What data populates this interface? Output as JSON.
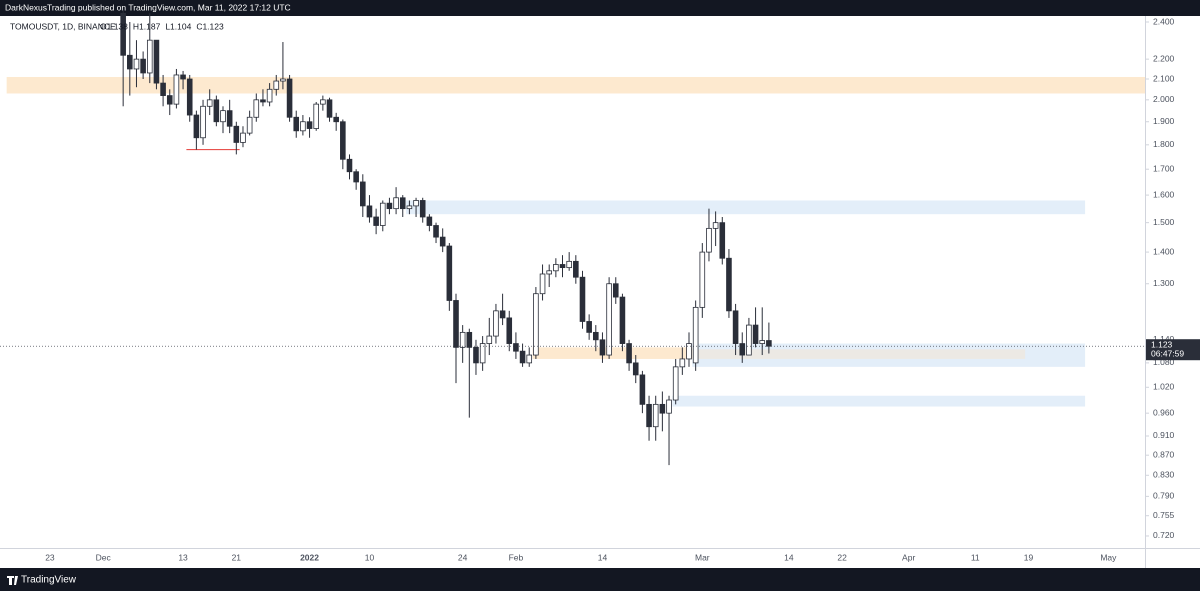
{
  "header": "DarkNexusTrading published on TradingView.com, Mar 11, 2022 17:12 UTC",
  "footer": "TradingView",
  "chart_data": {
    "type": "candlestick",
    "symbol": "TOMOUSDT, 1D, BINANCE",
    "ohlc_text": [
      "O1.138",
      "H1.187",
      "L1.104",
      "C1.123"
    ],
    "last_price": 1.123,
    "countdown": "06:47:59",
    "log_scale": true,
    "grid": false,
    "up_color": "#ffffff",
    "down_color": "#2a2e39",
    "ylim": [
      0.7,
      2.434
    ],
    "yticks": [
      {
        "value": 2.4,
        "label": "2.400"
      },
      {
        "value": 2.2,
        "label": "2.200"
      },
      {
        "value": 2.1,
        "label": "2.100"
      },
      {
        "value": 2.0,
        "label": "2.000"
      },
      {
        "value": 1.9,
        "label": "1.900"
      },
      {
        "value": 1.8,
        "label": "1.800"
      },
      {
        "value": 1.7,
        "label": "1.700"
      },
      {
        "value": 1.6,
        "label": "1.600"
      },
      {
        "value": 1.5,
        "label": "1.500"
      },
      {
        "value": 1.4,
        "label": "1.400"
      },
      {
        "value": 1.3,
        "label": "1.300"
      },
      {
        "value": 1.14,
        "label": "1.140"
      },
      {
        "value": 1.08,
        "label": "1.080"
      },
      {
        "value": 1.02,
        "label": "1.020"
      },
      {
        "value": 0.96,
        "label": "0.960"
      },
      {
        "value": 0.91,
        "label": "0.910"
      },
      {
        "value": 0.87,
        "label": "0.870"
      },
      {
        "value": 0.83,
        "label": "0.830"
      },
      {
        "value": 0.79,
        "label": "0.790"
      },
      {
        "value": 0.755,
        "label": "0.755"
      },
      {
        "value": 0.72,
        "label": "0.720"
      }
    ],
    "categories": [
      null,
      null,
      null,
      null,
      null,
      null,
      null,
      "23",
      null,
      null,
      null,
      null,
      null,
      null,
      null,
      "Dec",
      null,
      null,
      null,
      null,
      null,
      null,
      null,
      null,
      null,
      null,
      null,
      "13",
      null,
      null,
      null,
      null,
      null,
      null,
      null,
      "21",
      null,
      null,
      null,
      null,
      null,
      null,
      null,
      null,
      null,
      null,
      "2022",
      null,
      null,
      null,
      null,
      null,
      null,
      null,
      null,
      "10",
      null,
      null,
      null,
      null,
      null,
      null,
      null,
      null,
      null,
      null,
      null,
      null,
      null,
      "24",
      null,
      null,
      null,
      null,
      null,
      null,
      null,
      "Feb",
      null,
      null,
      null,
      null,
      null,
      null,
      null,
      null,
      null,
      null,
      null,
      null,
      "14",
      null,
      null,
      null,
      null,
      null,
      null,
      null,
      null,
      null,
      null,
      null,
      null,
      null,
      null,
      "Mar",
      null,
      null,
      null,
      null,
      null,
      null,
      null,
      null,
      null,
      null,
      null,
      null,
      "14",
      null,
      null,
      null,
      null,
      null,
      null,
      null,
      "22",
      null,
      null,
      null,
      null,
      null,
      null,
      null,
      null,
      null,
      "Apr",
      null,
      null,
      null,
      null,
      null,
      null,
      null,
      null,
      null,
      "11",
      null,
      null,
      null,
      null,
      null,
      null,
      null,
      "19",
      null,
      null,
      null,
      null,
      null,
      null,
      null,
      null,
      null,
      null,
      null,
      "May",
      null,
      null,
      null,
      null,
      null
    ],
    "ohlc": [
      null,
      null,
      null,
      null,
      null,
      null,
      null,
      null,
      null,
      null,
      null,
      null,
      null,
      null,
      null,
      null,
      null,
      null,
      [
        2.45,
        2.47,
        1.97,
        2.22
      ],
      [
        2.22,
        2.4,
        2.02,
        2.15
      ],
      [
        2.15,
        2.3,
        2.06,
        2.2
      ],
      [
        2.2,
        2.24,
        2.1,
        2.13
      ],
      [
        2.13,
        2.45,
        2.08,
        2.3
      ],
      [
        2.3,
        2.3,
        2.05,
        2.08
      ],
      [
        2.08,
        2.12,
        1.97,
        2.02
      ],
      [
        2.02,
        2.05,
        1.93,
        1.98
      ],
      [
        1.98,
        2.15,
        1.96,
        2.12
      ],
      [
        2.12,
        2.14,
        2.05,
        2.1
      ],
      [
        2.1,
        2.12,
        1.9,
        1.93
      ],
      [
        1.93,
        1.95,
        1.78,
        1.83
      ],
      [
        1.83,
        2.0,
        1.8,
        1.97
      ],
      [
        1.97,
        2.05,
        1.93,
        2.0
      ],
      [
        2.0,
        2.02,
        1.88,
        1.9
      ],
      [
        1.9,
        1.97,
        1.85,
        1.95
      ],
      [
        1.95,
        2.0,
        1.85,
        1.88
      ],
      [
        1.88,
        1.9,
        1.76,
        1.81
      ],
      [
        1.81,
        1.88,
        1.79,
        1.85
      ],
      [
        1.85,
        1.95,
        1.84,
        1.92
      ],
      [
        1.92,
        2.03,
        1.9,
        2.0
      ],
      [
        2.0,
        2.05,
        1.97,
        1.99
      ],
      [
        1.99,
        2.08,
        1.97,
        2.05
      ],
      [
        2.05,
        2.12,
        2.02,
        2.09
      ],
      [
        2.09,
        2.29,
        2.05,
        2.1
      ],
      [
        2.1,
        2.12,
        1.9,
        1.92
      ],
      [
        1.92,
        1.95,
        1.83,
        1.86
      ],
      [
        1.86,
        1.93,
        1.84,
        1.9
      ],
      [
        1.9,
        1.92,
        1.83,
        1.87
      ],
      [
        1.87,
        1.99,
        1.86,
        1.98
      ],
      [
        1.98,
        2.02,
        1.95,
        2.0
      ],
      [
        2.0,
        2.01,
        1.9,
        1.92
      ],
      [
        1.92,
        1.94,
        1.86,
        1.9
      ],
      [
        1.9,
        1.91,
        1.7,
        1.74
      ],
      [
        1.74,
        1.76,
        1.66,
        1.69
      ],
      [
        1.69,
        1.7,
        1.62,
        1.65
      ],
      [
        1.65,
        1.68,
        1.52,
        1.56
      ],
      [
        1.56,
        1.6,
        1.5,
        1.52
      ],
      [
        1.52,
        1.55,
        1.46,
        1.49
      ],
      [
        1.49,
        1.58,
        1.47,
        1.57
      ],
      [
        1.57,
        1.59,
        1.53,
        1.55
      ],
      [
        1.55,
        1.63,
        1.53,
        1.59
      ],
      [
        1.59,
        1.6,
        1.52,
        1.55
      ],
      [
        1.55,
        1.58,
        1.53,
        1.56
      ],
      [
        1.56,
        1.59,
        1.52,
        1.58
      ],
      [
        1.58,
        1.59,
        1.5,
        1.52
      ],
      [
        1.52,
        1.53,
        1.47,
        1.49
      ],
      [
        1.49,
        1.5,
        1.43,
        1.45
      ],
      [
        1.45,
        1.48,
        1.4,
        1.42
      ],
      [
        1.42,
        1.43,
        1.22,
        1.25
      ],
      [
        1.25,
        1.27,
        1.03,
        1.12
      ],
      [
        1.12,
        1.18,
        1.08,
        1.16
      ],
      [
        1.16,
        1.17,
        0.95,
        1.12
      ],
      [
        1.12,
        1.14,
        1.05,
        1.08
      ],
      [
        1.08,
        1.15,
        1.06,
        1.13
      ],
      [
        1.13,
        1.2,
        1.1,
        1.15
      ],
      [
        1.15,
        1.24,
        1.13,
        1.22
      ],
      [
        1.22,
        1.27,
        1.18,
        1.2
      ],
      [
        1.2,
        1.22,
        1.11,
        1.13
      ],
      [
        1.13,
        1.16,
        1.09,
        1.11
      ],
      [
        1.11,
        1.13,
        1.07,
        1.08
      ],
      [
        1.08,
        1.12,
        1.07,
        1.1
      ],
      [
        1.1,
        1.29,
        1.09,
        1.27
      ],
      [
        1.27,
        1.36,
        1.25,
        1.33
      ],
      [
        1.33,
        1.36,
        1.29,
        1.34
      ],
      [
        1.34,
        1.38,
        1.32,
        1.36
      ],
      [
        1.36,
        1.39,
        1.32,
        1.35
      ],
      [
        1.35,
        1.4,
        1.34,
        1.37
      ],
      [
        1.37,
        1.39,
        1.3,
        1.32
      ],
      [
        1.32,
        1.34,
        1.17,
        1.19
      ],
      [
        1.19,
        1.21,
        1.14,
        1.16
      ],
      [
        1.16,
        1.18,
        1.11,
        1.14
      ],
      [
        1.14,
        1.16,
        1.08,
        1.1
      ],
      [
        1.1,
        1.32,
        1.09,
        1.3
      ],
      [
        1.3,
        1.32,
        1.24,
        1.26
      ],
      [
        1.26,
        1.27,
        1.11,
        1.13
      ],
      [
        1.13,
        1.14,
        1.06,
        1.08
      ],
      [
        1.08,
        1.1,
        1.03,
        1.05
      ],
      [
        1.05,
        1.06,
        0.96,
        0.98
      ],
      [
        0.98,
        1.0,
        0.9,
        0.93
      ],
      [
        0.93,
        1.0,
        0.9,
        0.98
      ],
      [
        0.98,
        1.01,
        0.92,
        0.96
      ],
      [
        0.96,
        1.0,
        0.85,
        0.99
      ],
      [
        0.99,
        1.09,
        0.98,
        1.07
      ],
      [
        1.07,
        1.12,
        1.05,
        1.09
      ],
      [
        1.09,
        1.16,
        1.07,
        1.13
      ],
      [
        1.08,
        1.25,
        1.06,
        1.23
      ],
      [
        1.23,
        1.43,
        1.2,
        1.4
      ],
      [
        1.4,
        1.55,
        1.37,
        1.48
      ],
      [
        1.48,
        1.54,
        1.42,
        1.5
      ],
      [
        1.5,
        1.52,
        1.36,
        1.38
      ],
      [
        1.38,
        1.41,
        1.2,
        1.22
      ],
      [
        1.22,
        1.24,
        1.1,
        1.13
      ],
      [
        1.13,
        1.16,
        1.08,
        1.1
      ],
      [
        1.1,
        1.2,
        1.1,
        1.18
      ],
      [
        1.18,
        1.23,
        1.12,
        1.13
      ],
      [
        1.13,
        1.23,
        1.1,
        1.138
      ],
      [
        1.138,
        1.187,
        1.104,
        1.123
      ],
      null,
      null,
      null,
      null,
      null,
      null,
      null,
      null,
      null,
      null,
      null,
      null,
      null,
      null,
      null,
      null,
      null,
      null,
      null,
      null,
      null,
      null,
      null,
      null,
      null,
      null,
      null,
      null,
      null,
      null,
      null,
      null,
      null,
      null,
      null,
      null,
      null,
      null,
      null,
      null,
      null,
      null,
      null,
      null,
      null,
      null,
      null,
      null,
      null,
      null,
      null,
      null,
      null,
      null,
      null,
      null
    ],
    "zones": [
      {
        "start": 1,
        "end": 172,
        "low": 2.03,
        "high": 2.11,
        "color": "#fde9cf"
      },
      {
        "start": 61,
        "end": 163,
        "low": 1.53,
        "high": 1.58,
        "color": "#e3eef9"
      },
      {
        "start": 104,
        "end": 163,
        "low": 1.07,
        "high": 1.13,
        "color": "#e3eef9"
      },
      {
        "start": 80,
        "end": 104,
        "low": 1.09,
        "high": 1.12,
        "color": "#fde9cf"
      },
      {
        "start": 104,
        "end": 154,
        "low": 1.09,
        "high": 1.115,
        "color": "#ece9e4"
      },
      {
        "start": 101,
        "end": 163,
        "low": 0.975,
        "high": 1.0,
        "color": "#e3eef9"
      }
    ],
    "level_line": {
      "start": 28,
      "end": 36,
      "value": 1.78,
      "color": "#e53935"
    }
  }
}
